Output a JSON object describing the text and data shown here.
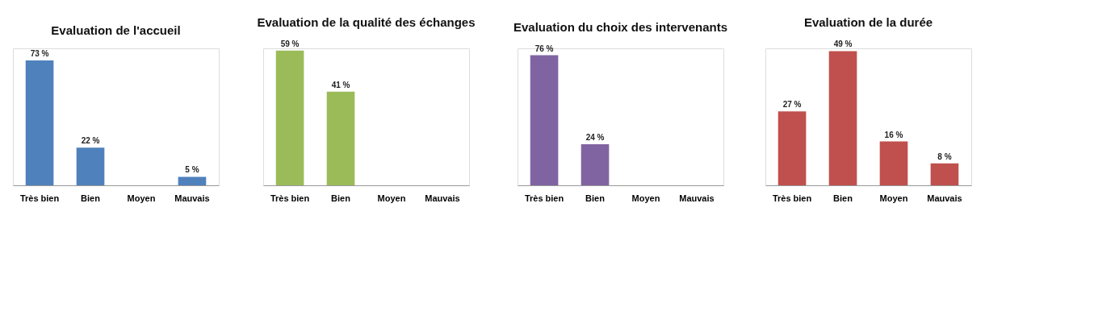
{
  "chart_data": [
    {
      "type": "bar",
      "title": "Evaluation de l'accueil",
      "categories": [
        "Très bien",
        "Bien",
        "Moyen",
        "Mauvais"
      ],
      "values": [
        73,
        22,
        null,
        5
      ],
      "value_labels": [
        "73 %",
        "22 %",
        null,
        "5 %"
      ],
      "color": "#4f81bd",
      "grid": false,
      "tick_labels": "x"
    },
    {
      "type": "bar",
      "title": "Evaluation de la qualité des échanges",
      "categories": [
        "Très bien",
        "Bien",
        "Moyen",
        "Mauvais"
      ],
      "values": [
        59,
        41,
        null,
        null
      ],
      "value_labels": [
        "59 %",
        "41 %",
        null,
        null
      ],
      "color": "#9bbb59",
      "grid": false,
      "tick_labels": "x"
    },
    {
      "type": "bar",
      "title": "Evaluation du choix des intervenants",
      "categories": [
        "Très bien",
        "Bien",
        "Moyen",
        "Mauvais"
      ],
      "values": [
        76,
        24,
        null,
        null
      ],
      "value_labels": [
        "76 %",
        "24 %",
        null,
        null
      ],
      "color": "#8064a2",
      "grid": false,
      "tick_labels": "x"
    },
    {
      "type": "bar",
      "title": "Evaluation de la durée",
      "categories": [
        "Très bien",
        "Bien",
        "Moyen",
        "Mauvais"
      ],
      "values": [
        27,
        49,
        16,
        8
      ],
      "value_labels": [
        "27 %",
        "49 %",
        "16 %",
        "8 %"
      ],
      "color": "#c0504d",
      "grid": false,
      "tick_labels": "x"
    }
  ]
}
